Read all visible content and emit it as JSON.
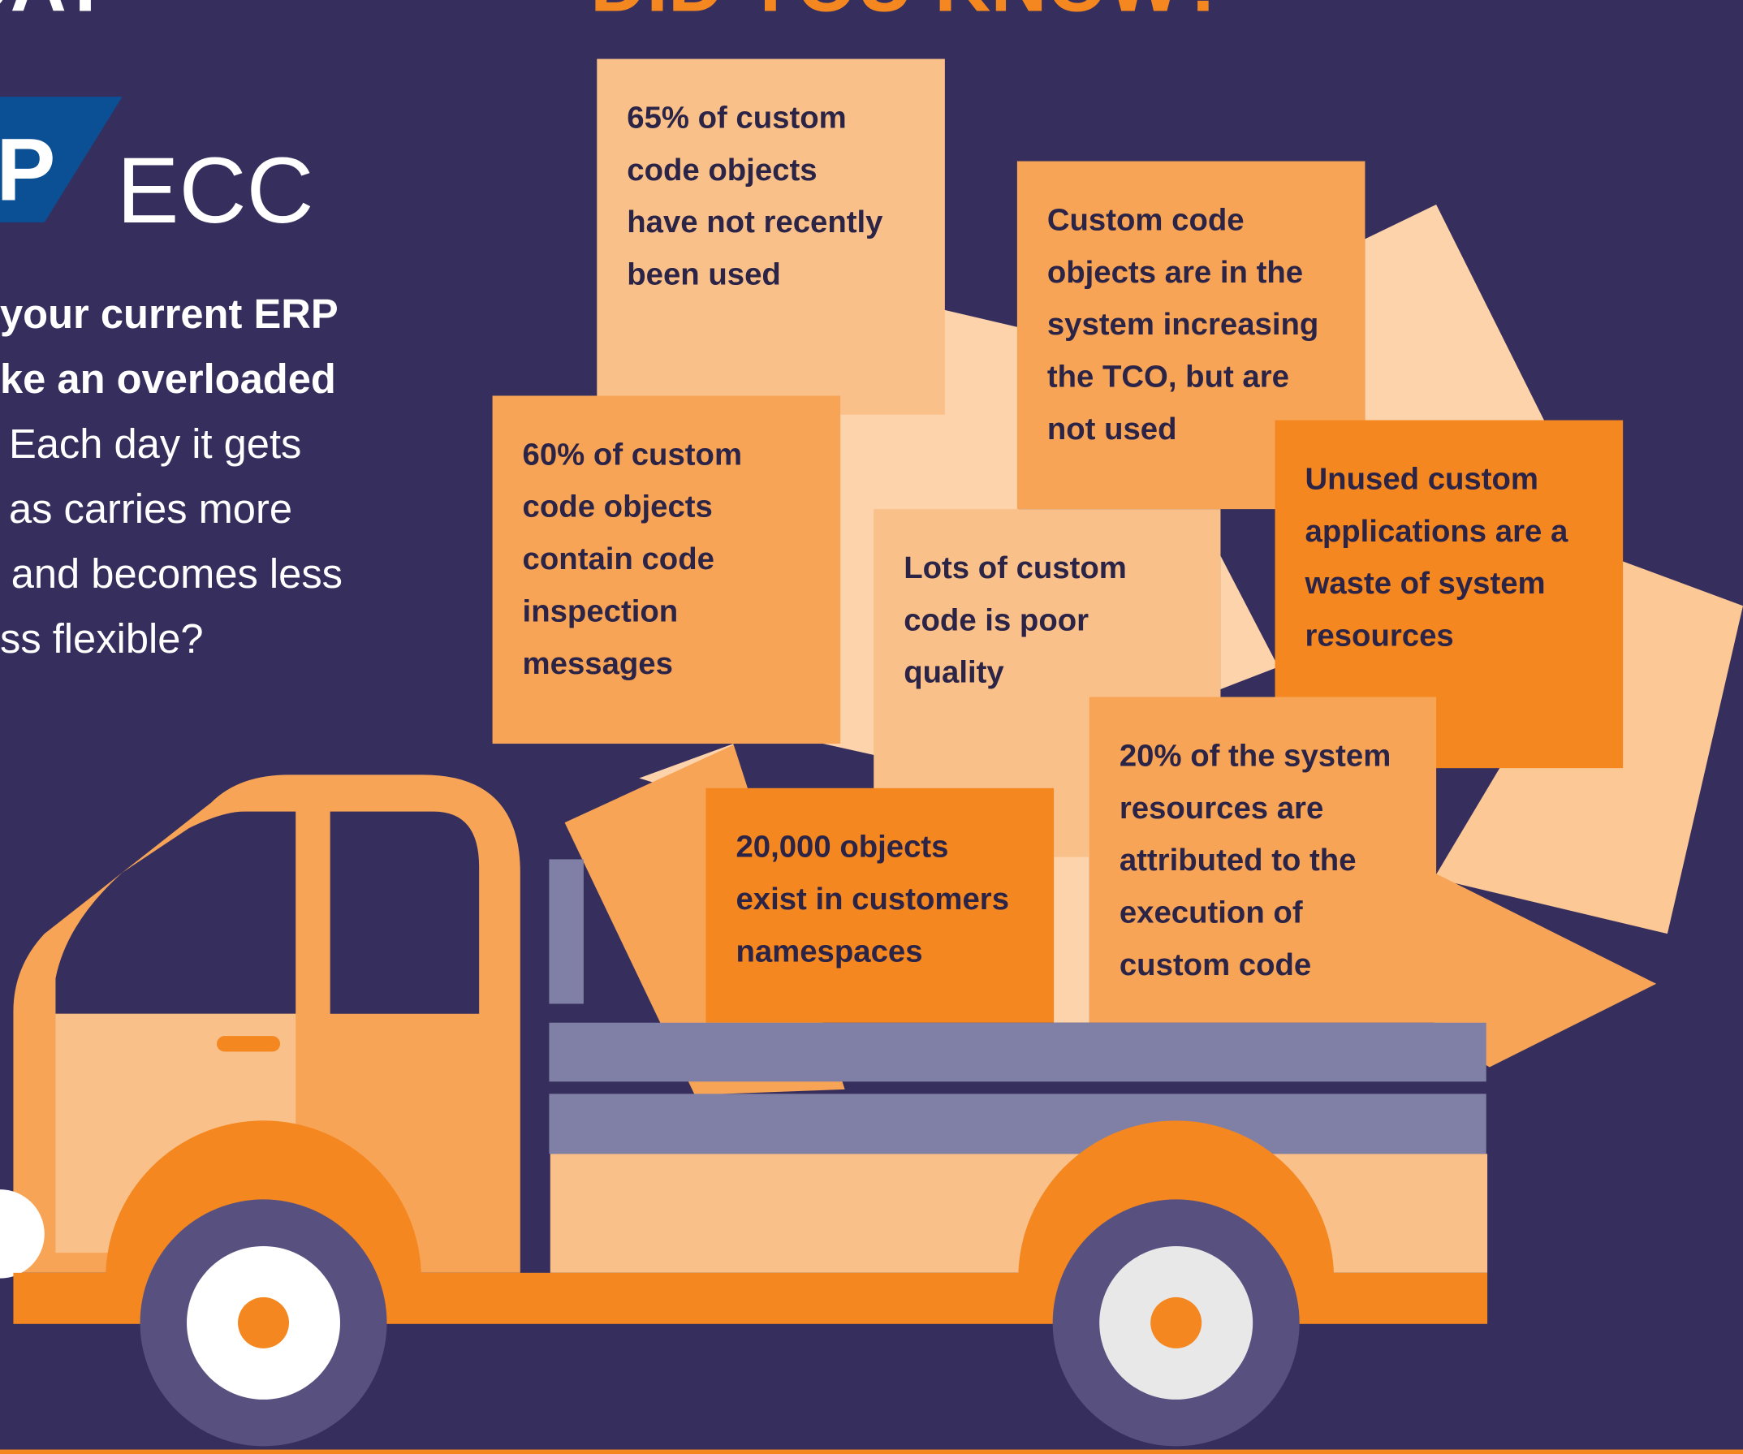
{
  "header": {
    "left_title": "DAY",
    "title": "DID YOU KNOW?"
  },
  "left": {
    "logo_letter": "P",
    "logo_text": "ECC",
    "lines": [
      "your current ERP",
      "ke an overloaded",
      "Each day it gets",
      "as carries more",
      "and becomes less",
      "ss flexible?"
    ]
  },
  "notes": [
    {
      "lines": [
        "65% of custom",
        "code objects",
        "have not recently",
        "been used"
      ]
    },
    {
      "lines": [
        "Custom code",
        "objects are in the",
        "system increasing",
        "the TCO, but are",
        "not used"
      ]
    },
    {
      "lines": [
        "60% of custom",
        "code objects",
        "contain code",
        "inspection",
        "messages"
      ]
    },
    {
      "lines": [
        "Unused custom",
        "applications are a",
        "waste of system",
        "resources"
      ]
    },
    {
      "lines": [
        "Lots of custom",
        "code is poor",
        "quality"
      ]
    },
    {
      "lines": [
        "20% of the system",
        "resources are",
        "attributed to the",
        "execution of",
        "custom code"
      ]
    },
    {
      "lines": [
        "20,000 objects",
        "exist in customers",
        "namespaces"
      ]
    }
  ]
}
